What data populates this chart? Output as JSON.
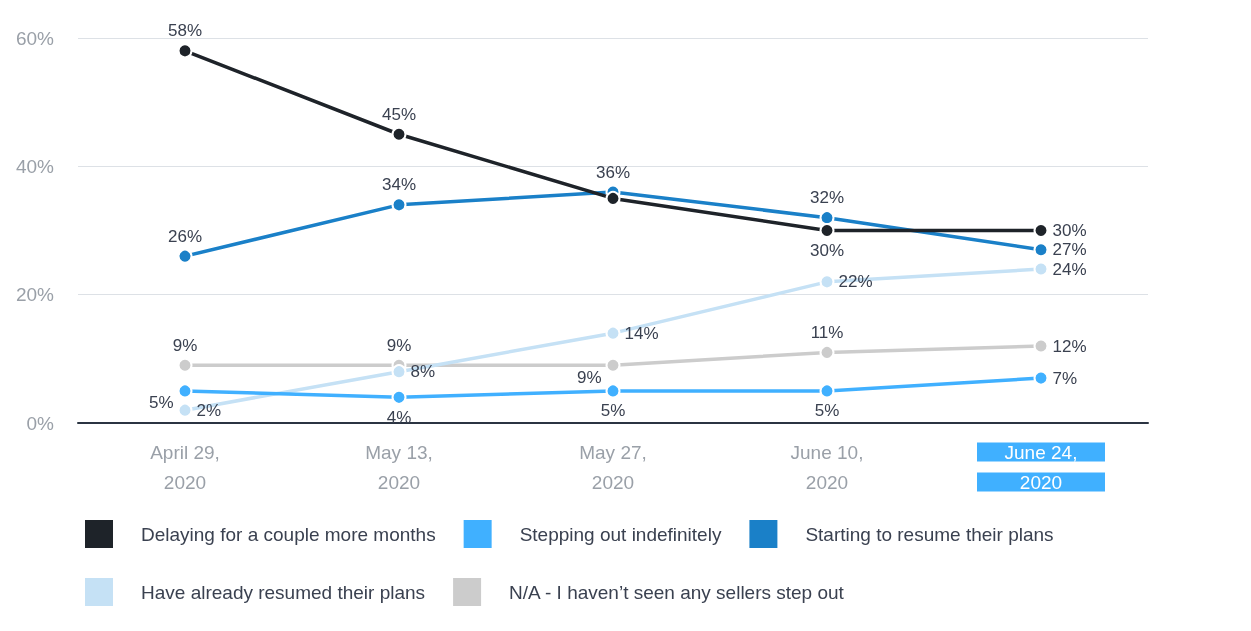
{
  "chart_data": {
    "type": "line",
    "categories": [
      "April 29,\n2020",
      "May 13,\n2020",
      "May 27,\n2020",
      "June 10,\n2020",
      "June 24,\n2020"
    ],
    "series": [
      {
        "name": "Delaying for a couple more months",
        "color": "#1e2329",
        "values": [
          58,
          45,
          35,
          30,
          30
        ],
        "value_labels": [
          "58%",
          "45%",
          null,
          "30%",
          "30%"
        ]
      },
      {
        "name": "Stepping out indefinitely",
        "color": "#40b0ff",
        "values": [
          5,
          4,
          5,
          5,
          7
        ],
        "value_labels": [
          "5%",
          "4%",
          "5%",
          "5%",
          "7%"
        ]
      },
      {
        "name": "Starting to resume their plans",
        "color": "#1a80c8",
        "values": [
          26,
          34,
          36,
          32,
          27
        ],
        "value_labels": [
          "26%",
          "34%",
          "36%",
          "32%",
          "27%"
        ]
      },
      {
        "name": "Have already resumed their plans",
        "color": "#c5e1f5",
        "values": [
          2,
          8,
          14,
          22,
          24
        ],
        "value_labels": [
          "2%",
          "8%",
          "14%",
          "22%",
          "24%"
        ]
      },
      {
        "name": "N/A - I haven’t seen any sellers step out",
        "color": "#cccccc",
        "values": [
          9,
          9,
          9,
          11,
          12
        ],
        "value_labels": [
          "9%",
          "9%",
          "9%",
          "11%",
          "12%"
        ]
      }
    ],
    "ylim": [
      0,
      60
    ],
    "yticks": [
      {
        "value": 0,
        "label": "0%"
      },
      {
        "value": 20,
        "label": "20%"
      },
      {
        "value": 40,
        "label": "40%"
      },
      {
        "value": 60,
        "label": "60%"
      }
    ],
    "grid": "y",
    "legend": "bottom",
    "marker": "circle",
    "line_style": "solid"
  }
}
